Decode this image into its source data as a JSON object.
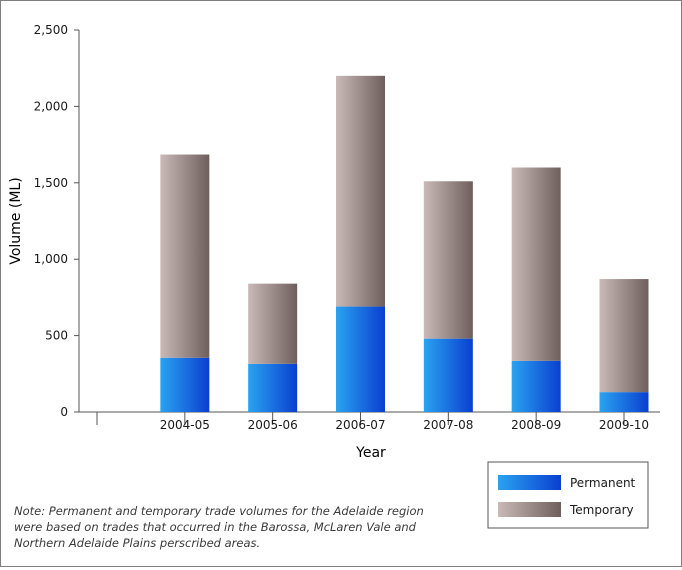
{
  "chart_data": {
    "type": "bar",
    "stacked": true,
    "categories": [
      "2004-05",
      "2005-06",
      "2006-07",
      "2007-08",
      "2008-09",
      "2009-10"
    ],
    "series": [
      {
        "name": "Permanent",
        "values": [
          355,
          315,
          690,
          480,
          335,
          130
        ],
        "color": "#1a70e0"
      },
      {
        "name": "Temporary",
        "values": [
          1330,
          525,
          1510,
          1030,
          1265,
          740
        ],
        "color": "#8a7a78"
      }
    ],
    "xlabel": "Year",
    "ylabel": "Volume (ML)",
    "ylim": [
      0,
      2500
    ],
    "yticks": [
      "0",
      "500",
      "1,000",
      "1,500",
      "2,000",
      "2,500"
    ],
    "grid": false,
    "legend_position": "bottom-right"
  },
  "note": "Note: Permanent and temporary trade volumes for the Adelaide region were based on trades that occurred in the Barossa, McLaren Vale and Northern Adelaide Plains perscribed areas."
}
